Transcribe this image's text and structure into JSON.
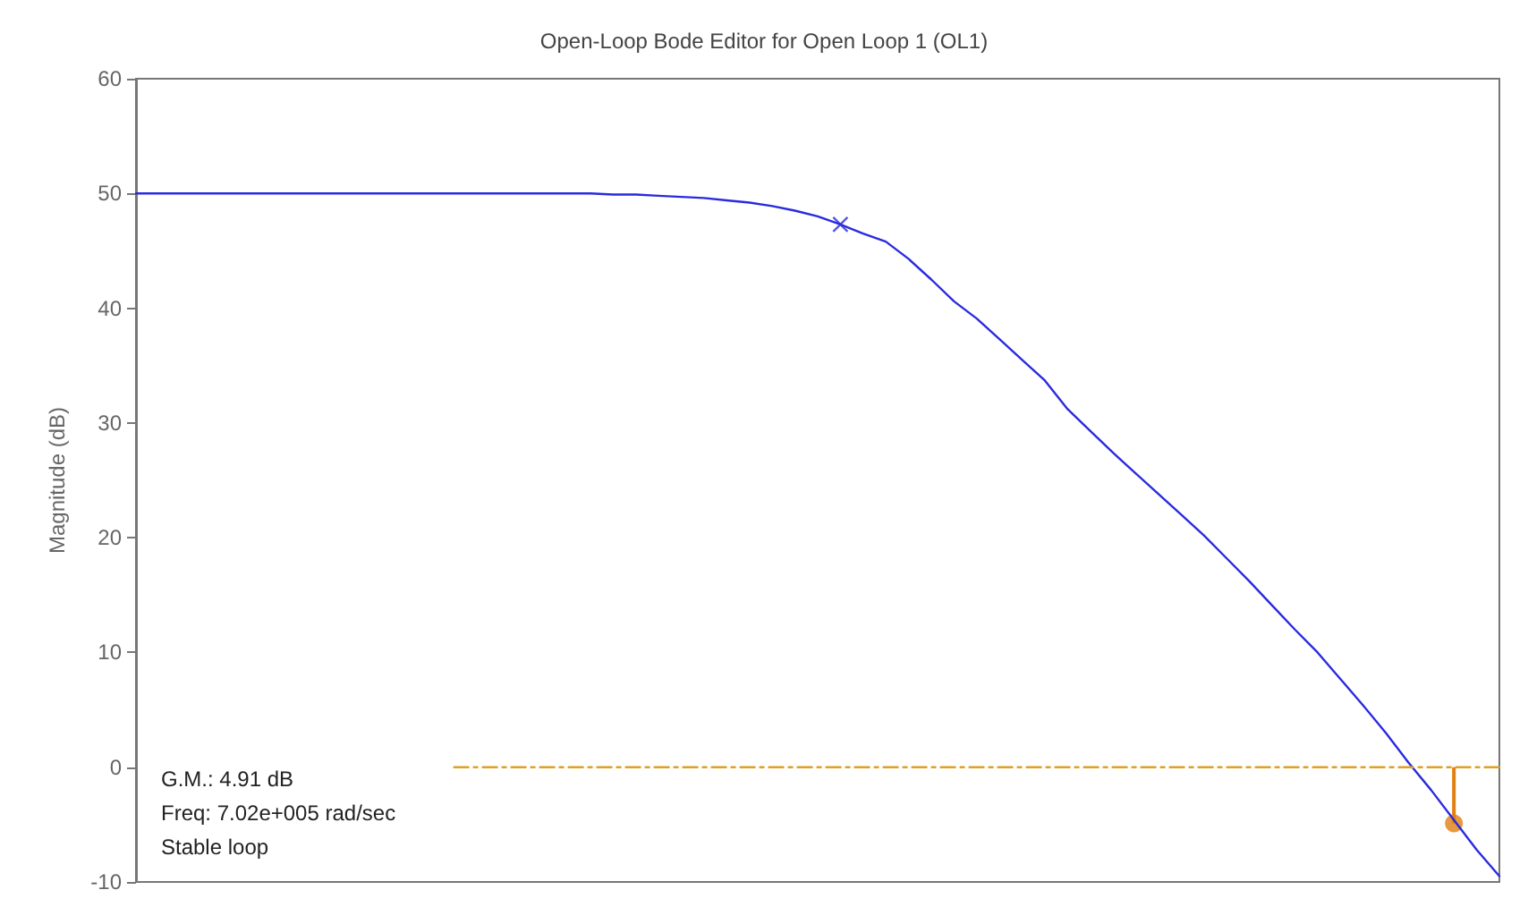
{
  "chart_data": {
    "type": "line",
    "title": "Open-Loop Bode Editor for Open Loop 1 (OL1)",
    "ylabel": "Magnitude (dB)",
    "categories": [
      null,
      null,
      null,
      null,
      null,
      null,
      null,
      null,
      null,
      null,
      null,
      null,
      null,
      null,
      null,
      null,
      null,
      null,
      null,
      null,
      null,
      null,
      null,
      null,
      null,
      null,
      null,
      null,
      null,
      null,
      null,
      null,
      null,
      null,
      null,
      null,
      null,
      null,
      null,
      null,
      null,
      null,
      null,
      null,
      null,
      null,
      null,
      null,
      null,
      null,
      null,
      null,
      null,
      null,
      null,
      null,
      null,
      null,
      null,
      null,
      null
    ],
    "series": [
      {
        "color": "#2a2ae0",
        "marker": "none",
        "line_style": "solid",
        "values": [
          50,
          50,
          50,
          50,
          50,
          50,
          50,
          50,
          50,
          50,
          50,
          50,
          50,
          50,
          50,
          50,
          50,
          50,
          50,
          50,
          50,
          49.9,
          49.9,
          49.8,
          49.7,
          49.6,
          49.4,
          49.2,
          48.9,
          48.5,
          48.0,
          47.3,
          46.5,
          45.8,
          44.3,
          42.5,
          40.6,
          39.1,
          37.3,
          35.5,
          33.7,
          31.2,
          29.3,
          27.4,
          25.6,
          23.8,
          22.0,
          20.2,
          18.2,
          16.2,
          14.1,
          12.0,
          10.0,
          7.7,
          5.4,
          3.0,
          0.4,
          -2.0,
          -4.6,
          -7.2,
          -9.5
        ]
      },
      {
        "type": "scatter",
        "color": "#2a2ae0",
        "marker": "cross",
        "values": [
          null,
          null,
          null,
          null,
          null,
          null,
          null,
          null,
          null,
          null,
          null,
          null,
          null,
          null,
          null,
          null,
          null,
          null,
          null,
          null,
          null,
          null,
          null,
          null,
          null,
          null,
          null,
          null,
          null,
          null,
          null,
          47.3,
          null,
          null,
          null,
          null,
          null,
          null,
          null,
          null,
          null,
          null,
          null,
          null,
          null,
          null,
          null,
          null,
          null,
          null,
          null,
          null,
          null,
          null,
          null,
          null,
          null,
          null,
          null,
          null,
          null
        ]
      },
      {
        "type": "line",
        "color": "#e0a020",
        "marker": "none",
        "line_style": "dashed",
        "values": [
          null,
          null,
          null,
          null,
          null,
          null,
          null,
          null,
          null,
          null,
          null,
          null,
          null,
          null,
          0,
          0,
          0,
          0,
          0,
          0,
          0,
          0,
          0,
          0,
          0,
          0,
          0,
          0,
          0,
          0,
          0,
          0,
          0,
          0,
          0,
          0,
          0,
          0,
          0,
          0,
          0,
          0,
          0,
          0,
          0,
          0,
          0,
          0,
          0,
          0,
          0,
          0,
          0,
          0,
          0,
          0,
          0,
          0,
          0,
          0,
          0
        ]
      },
      {
        "type": "lollipop",
        "color": "#e08010",
        "marker": "circle",
        "values": [
          null,
          null,
          null,
          null,
          null,
          null,
          null,
          null,
          null,
          null,
          null,
          null,
          null,
          null,
          null,
          null,
          null,
          null,
          null,
          null,
          null,
          null,
          null,
          null,
          null,
          null,
          null,
          null,
          null,
          null,
          null,
          null,
          null,
          null,
          null,
          null,
          null,
          null,
          null,
          null,
          null,
          null,
          null,
          null,
          null,
          null,
          null,
          null,
          null,
          null,
          null,
          null,
          null,
          null,
          null,
          null,
          null,
          null,
          -4.9,
          null,
          null
        ]
      }
    ],
    "ylim": [
      -10,
      60
    ],
    "yticks": [
      -10,
      0,
      10,
      20,
      30,
      40,
      50,
      60
    ],
    "tick_labels": "y",
    "grid": false,
    "annotations": [
      "G.M.: 4.91 dB",
      "Freq: 7.02e+005 rad/sec",
      "Stable loop"
    ]
  }
}
